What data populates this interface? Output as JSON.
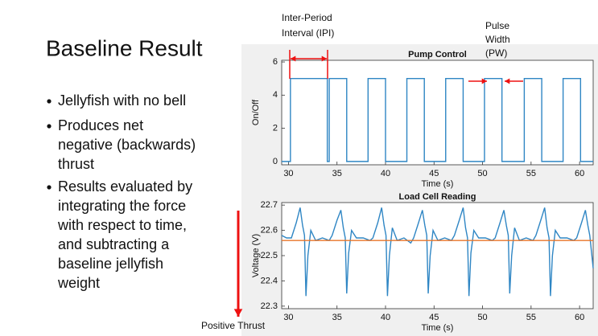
{
  "slide": {
    "title": "Baseline Result",
    "bullets": [
      [
        "Jellyfish with no bell"
      ],
      [
        "Produces net",
        "negative (backwards)",
        "thrust"
      ],
      [
        "Results evaluated by",
        "integrating the force",
        "with respect to time,",
        "and subtracting a",
        "baseline jellyfish",
        "weight"
      ]
    ]
  },
  "chart_data": [
    {
      "type": "line",
      "title": "Pump Control",
      "xlabel": "Time (s)",
      "ylabel": "On/Off",
      "xlim": [
        29.3,
        61.4
      ],
      "ylim": [
        -0.2,
        6.1
      ],
      "xticks": [
        30,
        35,
        40,
        45,
        50,
        55,
        60
      ],
      "yticks": [
        0,
        2,
        4,
        6
      ],
      "annotations": [
        {
          "lines": [
            "Inter-Period",
            "Interval (IPI)"
          ]
        },
        {
          "lines": [
            "Pulse",
            "Width",
            "(PW)"
          ]
        }
      ],
      "series": [
        {
          "color": "#2f86c4",
          "x": [
            29.3,
            30.2,
            30.2,
            34.0,
            34.0,
            34.2,
            34.2,
            36.0,
            36.0,
            38.2,
            38.2,
            40.0,
            40.0,
            42.2,
            42.2,
            44.0,
            44.0,
            46.2,
            46.2,
            48.0,
            48.0,
            50.2,
            50.2,
            52.0,
            52.0,
            54.3,
            54.3,
            56.1,
            56.1,
            58.3,
            58.3,
            60.1,
            60.1,
            61.4
          ],
          "values": [
            0,
            0,
            5,
            5,
            0,
            0,
            5,
            5,
            0,
            0,
            5,
            5,
            0,
            0,
            5,
            5,
            0,
            0,
            5,
            5,
            0,
            0,
            5,
            5,
            0,
            0,
            5,
            5,
            0,
            0,
            5,
            5,
            0,
            0
          ]
        }
      ]
    },
    {
      "type": "line",
      "title": "Load Cell Reading",
      "xlabel": "Time (s)",
      "ylabel": "Voltage (V)",
      "xlim": [
        29.3,
        61.4
      ],
      "ylim": [
        22.29,
        22.71
      ],
      "xticks": [
        30,
        35,
        40,
        45,
        50,
        55,
        60
      ],
      "yticks": [
        {
          "value": 22.3,
          "label": "22.3"
        },
        {
          "value": 22.4,
          "label": "22.4"
        },
        {
          "value": 22.5,
          "label": "22.5"
        },
        {
          "value": 22.6,
          "label": "22.6"
        },
        {
          "value": 22.7,
          "label": "22.7"
        }
      ],
      "annotations": [
        {
          "lines": [
            "Positive Thrust"
          ]
        }
      ],
      "series": [
        {
          "color": "#2f86c4",
          "x": [
            29.3,
            29.8,
            30.3,
            30.8,
            31.2,
            31.45,
            31.65,
            31.8,
            32.0,
            32.3,
            32.8,
            33.5,
            34.2,
            34.5,
            35.0,
            35.4,
            35.65,
            35.85,
            36.0,
            36.2,
            36.5,
            37.0,
            37.7,
            38.4,
            38.7,
            39.2,
            39.6,
            39.85,
            40.05,
            40.2,
            40.4,
            40.7,
            41.2,
            41.9,
            42.6,
            42.9,
            43.4,
            43.8,
            44.05,
            44.25,
            44.4,
            44.6,
            44.9,
            45.4,
            46.1,
            46.8,
            47.1,
            47.6,
            48.0,
            48.25,
            48.45,
            48.6,
            48.8,
            49.1,
            49.6,
            50.3,
            51.0,
            51.3,
            51.8,
            52.2,
            52.45,
            52.65,
            52.8,
            53.0,
            53.3,
            53.8,
            54.5,
            55.2,
            55.5,
            56.0,
            56.4,
            56.65,
            56.85,
            57.0,
            57.2,
            57.5,
            58.0,
            58.7,
            59.4,
            59.7,
            60.2,
            60.6,
            60.85,
            61.05,
            61.4
          ],
          "values": [
            22.58,
            22.57,
            22.57,
            22.63,
            22.69,
            22.62,
            22.58,
            22.34,
            22.5,
            22.6,
            22.56,
            22.57,
            22.56,
            22.58,
            22.64,
            22.68,
            22.61,
            22.57,
            22.35,
            22.51,
            22.6,
            22.57,
            22.57,
            22.56,
            22.57,
            22.63,
            22.69,
            22.62,
            22.58,
            22.34,
            22.5,
            22.61,
            22.56,
            22.57,
            22.55,
            22.57,
            22.63,
            22.68,
            22.62,
            22.58,
            22.35,
            22.5,
            22.6,
            22.56,
            22.57,
            22.56,
            22.58,
            22.64,
            22.69,
            22.61,
            22.57,
            22.34,
            22.51,
            22.6,
            22.57,
            22.57,
            22.56,
            22.57,
            22.63,
            22.68,
            22.62,
            22.58,
            22.35,
            22.5,
            22.61,
            22.56,
            22.57,
            22.56,
            22.58,
            22.64,
            22.69,
            22.61,
            22.57,
            22.34,
            22.5,
            22.6,
            22.57,
            22.57,
            22.56,
            22.57,
            22.63,
            22.68,
            22.62,
            22.58,
            22.45
          ]
        },
        {
          "color": "#e8752a",
          "x": [
            29.3,
            61.4
          ],
          "values": [
            22.56,
            22.56
          ]
        }
      ]
    }
  ]
}
